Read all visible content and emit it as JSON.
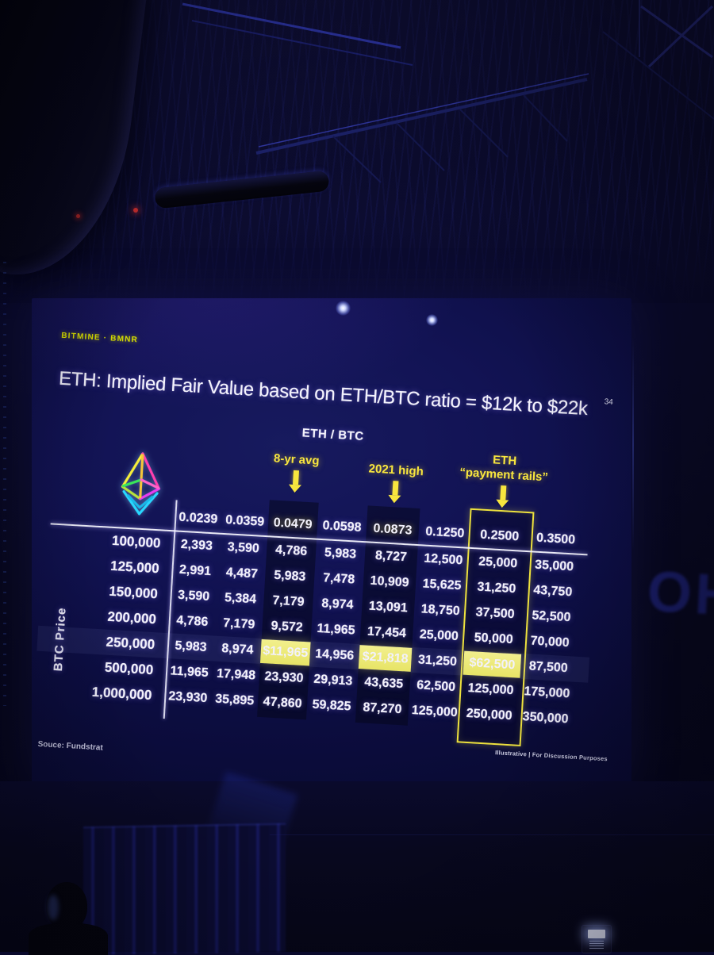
{
  "slide": {
    "brand": "BITMINE · BMNR",
    "page_number": "34",
    "title": "ETH: Implied Fair Value based on ETH/BTC ratio = $12k to $22k",
    "table_title": "ETH / BTC",
    "y_axis_label": "BTC Price",
    "source": "Souce: Fundstrat",
    "footer_right": "Illustrative  |  For Discussion Purposes",
    "logo_icon": "ethereum-logo",
    "annotations": [
      {
        "lines": [
          "8-yr avg"
        ],
        "icon": "down-arrow-icon"
      },
      {
        "lines": [
          "2021 high"
        ],
        "icon": "down-arrow-icon"
      },
      {
        "lines": [
          "ETH",
          "“payment rails”"
        ],
        "icon": "down-arrow-icon"
      }
    ]
  },
  "environment": {
    "wall_logo": "OH"
  },
  "colors": {
    "accent_yellow": "#f8e63e",
    "highlight_cell_bg": "#edea7d",
    "brand_yellow_green": "#dce300",
    "slide_background": "#101148",
    "text_white": "#f3f2fc"
  },
  "chart_data": {
    "type": "table",
    "title": "ETH: Implied Fair Value based on ETH/BTC ratio = $12k to $22k",
    "column_group_label": "ETH / BTC",
    "row_group_label": "BTC Price",
    "columns": [
      "0.0239",
      "0.0359",
      "0.0479",
      "0.0598",
      "0.0873",
      "0.1250",
      "0.2500",
      "0.3500"
    ],
    "rows": [
      "100,000",
      "125,000",
      "150,000",
      "200,000",
      "250,000",
      "500,000",
      "1,000,000"
    ],
    "values": [
      [
        "2,393",
        "3,590",
        "4,786",
        "5,983",
        "8,727",
        "12,500",
        "25,000",
        "35,000"
      ],
      [
        "2,991",
        "4,487",
        "5,983",
        "7,478",
        "10,909",
        "15,625",
        "31,250",
        "43,750"
      ],
      [
        "3,590",
        "5,384",
        "7,179",
        "8,974",
        "13,091",
        "18,750",
        "37,500",
        "52,500"
      ],
      [
        "4,786",
        "7,179",
        "9,572",
        "11,965",
        "17,454",
        "25,000",
        "50,000",
        "70,000"
      ],
      [
        "5,983",
        "8,974",
        "$11,965",
        "14,956",
        "$21,818",
        "31,250",
        "$62,500",
        "87,500"
      ],
      [
        "11,965",
        "17,948",
        "23,930",
        "29,913",
        "43,635",
        "62,500",
        "125,000",
        "175,000"
      ],
      [
        "23,930",
        "35,895",
        "47,860",
        "59,825",
        "87,270",
        "125,000",
        "250,000",
        "350,000"
      ]
    ],
    "column_annotations": [
      "8-yr avg",
      "2021 high",
      "ETH “payment rails”"
    ],
    "annotated_columns": [
      "0.0479",
      "0.0873",
      "0.2500"
    ],
    "highlights": {
      "shaded_column_indices": [
        2,
        4
      ],
      "outlined_column_index": 6,
      "yellow_cells": [
        [
          4,
          2
        ],
        [
          4,
          4
        ],
        [
          4,
          6
        ]
      ],
      "shaded_row_index": 4,
      "yellow_header_indices": [
        2,
        4
      ]
    }
  }
}
